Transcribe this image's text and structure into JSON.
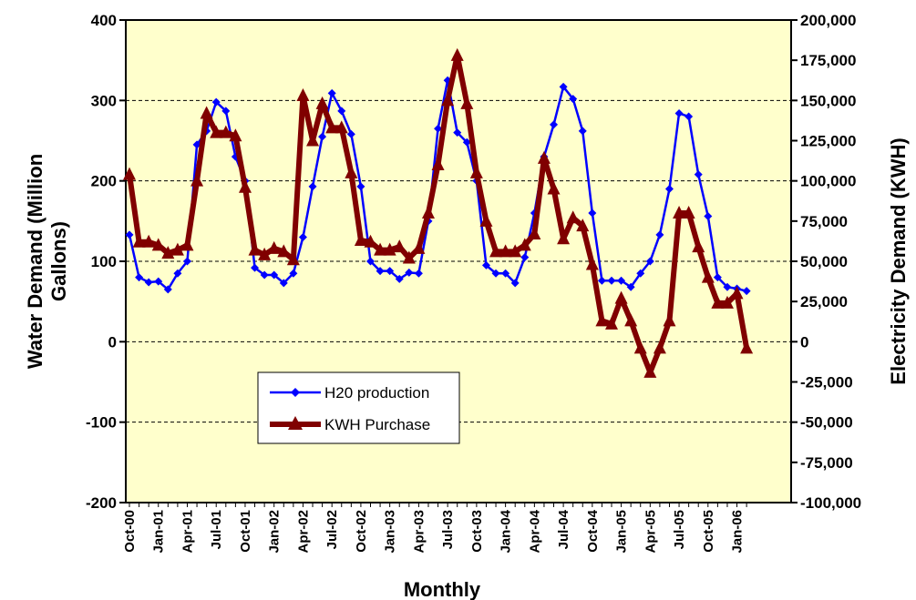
{
  "chart_data": {
    "type": "line",
    "xlabel": "Monthly",
    "ylabel_left": "Water Demand (Million Gallons)",
    "ylabel_right": "Electricity Demand (KWH)",
    "ylim_left": [
      -200,
      400
    ],
    "yticks_left": [
      "400",
      "300",
      "200",
      "100",
      "0",
      "-100",
      "-200"
    ],
    "ylim_right": [
      -100000,
      200000
    ],
    "yticks_right": [
      "200,000",
      "175,000",
      "150,000",
      "125,000",
      "100,000",
      "75,000",
      "50,000",
      "25,000",
      "0",
      "-25,000",
      "-50,000",
      "-75,000",
      "-100,000"
    ],
    "x_tick_labels": [
      "Oct-00",
      "Jan-01",
      "Apr-01",
      "Jul-01",
      "Oct-01",
      "Jan-02",
      "Apr-02",
      "Jul-02",
      "Oct-02",
      "Jan-03",
      "Apr-03",
      "Jul-03",
      "Oct-03",
      "Jan-04",
      "Apr-04",
      "Jul-04",
      "Oct-04",
      "Jan-05",
      "Apr-05",
      "Jul-05",
      "Oct-05",
      "Jan-06"
    ],
    "grid": "horizontal dashed",
    "background": "#FFFFCC",
    "legend_position": "lower-left",
    "series": [
      {
        "name": "H20 production",
        "axis": "left",
        "color": "#0000FF",
        "marker": "diamond",
        "values": [
          133,
          80,
          74,
          75,
          65,
          85,
          100,
          245,
          262,
          298,
          287,
          230,
          200,
          92,
          83,
          83,
          73,
          85,
          130,
          193,
          255,
          309,
          287,
          258,
          193,
          100,
          88,
          88,
          78,
          86,
          85,
          150,
          265,
          325,
          260,
          248,
          200,
          95,
          85,
          85,
          73,
          105,
          160,
          230,
          270,
          317,
          302,
          262,
          160,
          76,
          76,
          76,
          68,
          85,
          100,
          133,
          190,
          284,
          280,
          208,
          156,
          80,
          68,
          66,
          63
        ]
      },
      {
        "name": "KWH Purchase",
        "axis": "right",
        "color": "#800000",
        "marker": "triangle",
        "values": [
          104000,
          62000,
          62000,
          60000,
          55000,
          57000,
          60000,
          100000,
          142000,
          130000,
          130000,
          128000,
          96000,
          57000,
          54000,
          58000,
          56000,
          51000,
          153000,
          125000,
          148000,
          133000,
          133000,
          105000,
          63000,
          62000,
          57000,
          57000,
          59000,
          52000,
          58000,
          80000,
          110000,
          150000,
          178000,
          148000,
          105000,
          75000,
          56000,
          56000,
          56000,
          60000,
          67000,
          114000,
          95000,
          64000,
          77000,
          72000,
          48000,
          13000,
          11000,
          27000,
          13000,
          -4000,
          -19000,
          -4000,
          13000,
          80000,
          80000,
          59000,
          40000,
          24000,
          24000,
          30000,
          -4000
        ]
      }
    ]
  }
}
